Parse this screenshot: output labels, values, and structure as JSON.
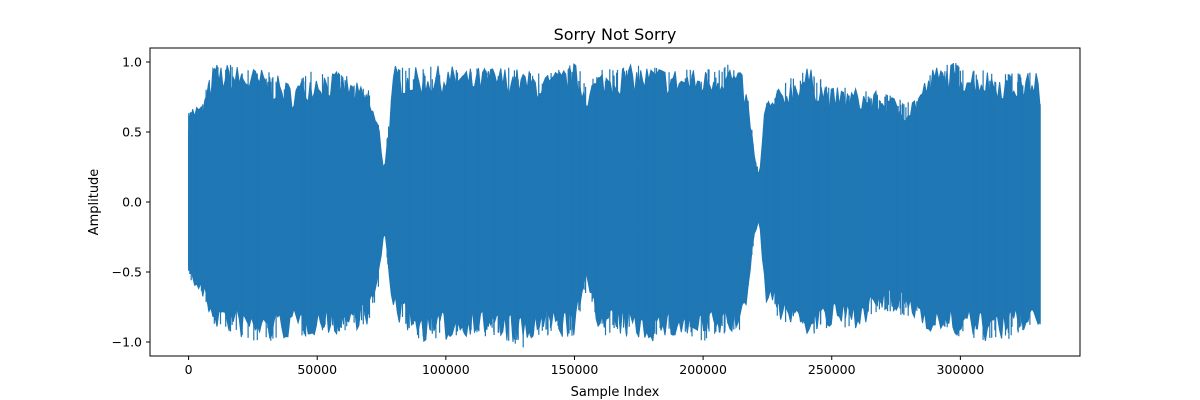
{
  "chart_data": {
    "type": "line",
    "title": "Sorry Not Sorry",
    "xlabel": "Sample Index",
    "ylabel": "Amplitude",
    "xlim": [
      -15000,
      346500
    ],
    "ylim": [
      -1.1,
      1.1
    ],
    "xticks": [
      0,
      50000,
      100000,
      150000,
      200000,
      250000,
      300000
    ],
    "xtick_labels": [
      "0",
      "50000",
      "100000",
      "150000",
      "200000",
      "250000",
      "300000"
    ],
    "yticks": [
      -1.0,
      -0.5,
      0.0,
      0.5,
      1.0
    ],
    "ytick_labels": [
      "−1.0",
      "−0.5",
      "0.0",
      "0.5",
      "1.0"
    ],
    "grid": false,
    "series": [
      {
        "color": "#1f77b4",
        "envelope": {
          "x": [
            0,
            2000,
            5000,
            10000,
            20000,
            30000,
            40000,
            50000,
            60000,
            70000,
            74000,
            76000,
            78000,
            80000,
            90000,
            100000,
            110000,
            120000,
            130000,
            140000,
            150000,
            155000,
            160000,
            170000,
            180000,
            190000,
            200000,
            210000,
            215000,
            218000,
            220000,
            222000,
            224000,
            230000,
            240000,
            250000,
            260000,
            270000,
            280000,
            290000,
            300000,
            310000,
            320000,
            325000,
            330000,
            331000
          ],
          "upper": [
            0.65,
            0.72,
            0.7,
            1.0,
            0.98,
            0.95,
            0.85,
            0.96,
            0.92,
            0.8,
            0.55,
            0.25,
            0.6,
            0.98,
            0.96,
            0.98,
            0.96,
            0.98,
            0.95,
            0.92,
            1.0,
            0.85,
            0.95,
            0.98,
            0.98,
            0.96,
            0.95,
            1.0,
            0.92,
            0.7,
            0.32,
            0.2,
            0.72,
            0.82,
            0.98,
            0.82,
            0.82,
            0.78,
            0.72,
            0.98,
            1.0,
            0.95,
            0.92,
            0.92,
            0.97,
            0.7
          ],
          "lower": [
            -0.5,
            -0.62,
            -0.7,
            -0.9,
            -0.98,
            -1.0,
            -0.98,
            -0.95,
            -0.95,
            -0.88,
            -0.6,
            -0.2,
            -0.55,
            -0.85,
            -1.0,
            -1.0,
            -0.95,
            -0.98,
            -1.05,
            -0.95,
            -0.98,
            -0.6,
            -0.95,
            -0.98,
            -1.0,
            -0.98,
            -1.0,
            -0.95,
            -0.95,
            -0.6,
            -0.22,
            -0.15,
            -0.7,
            -0.85,
            -0.95,
            -0.92,
            -0.9,
            -0.78,
            -0.82,
            -0.95,
            -0.97,
            -1.0,
            -0.98,
            -0.92,
            -0.9,
            -0.95
          ]
        }
      }
    ]
  }
}
